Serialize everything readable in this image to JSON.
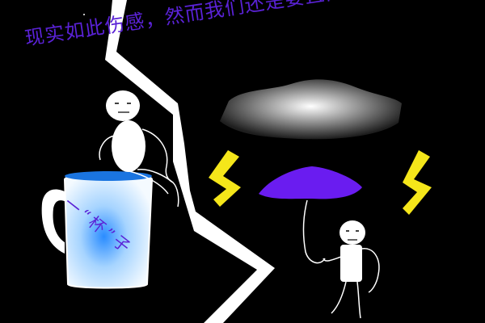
{
  "scene": {
    "background_color": "#000000",
    "caption": "现实如此伤感，然而我们还是要直面。。。。",
    "cup_label": "一“杯”子",
    "colors": {
      "text_purple": "#5a22d6",
      "umbrella_purple": "#6a1cf0",
      "lightning_yellow": "#f5e61a",
      "cup_blue": "#1a74e0",
      "cloud_gray": "#cccccc",
      "stick_figure": "#ffffff"
    },
    "elements": [
      "sitting-stick-figure",
      "mug",
      "lightning-bolt",
      "storm-cloud",
      "yellow-lightning",
      "umbrella",
      "standing-stick-figure"
    ]
  }
}
